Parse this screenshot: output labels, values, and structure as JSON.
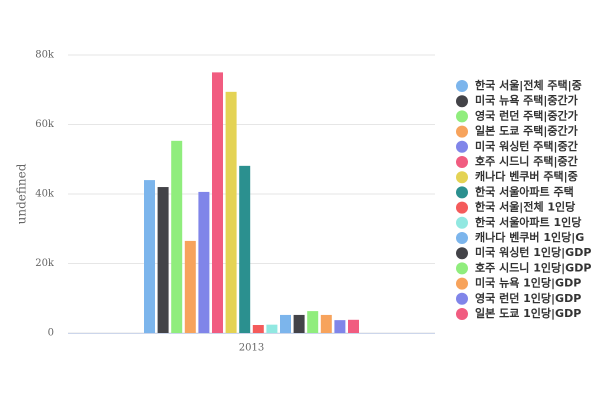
{
  "chart_data": {
    "type": "bar",
    "y_label": "undefined",
    "categories": [
      "2013"
    ],
    "ylim": [
      0,
      80000
    ],
    "yticks": [
      0,
      {
        "value": 20000,
        "label": "20k"
      },
      {
        "value": 40000,
        "label": "40k"
      },
      {
        "value": 60000,
        "label": "60k"
      },
      {
        "value": 80000,
        "label": "80k"
      }
    ],
    "grid": true,
    "legend": "right",
    "series": [
      {
        "name": "한국 서울|전체 주택|중",
        "color": "#7cb5ec",
        "values": [
          44000
        ]
      },
      {
        "name": "미국 뉴욕 주택|중간가",
        "color": "#434348",
        "values": [
          42000
        ]
      },
      {
        "name": "영국 런던 주택|중간가",
        "color": "#90ed7d",
        "values": [
          55300
        ]
      },
      {
        "name": "일본 도쿄 주택|중간가",
        "color": "#f7a35c",
        "values": [
          26500
        ]
      },
      {
        "name": "미국 워싱턴 주택|중간",
        "color": "#8085e9",
        "values": [
          40600
        ]
      },
      {
        "name": "호주 시드니 주택|중간",
        "color": "#f15c80",
        "values": [
          75000
        ]
      },
      {
        "name": "캐나다 벤쿠버 주택|중",
        "color": "#e4d354",
        "values": [
          69400
        ]
      },
      {
        "name": "한국 서울아파트 주택",
        "color": "#2b908f",
        "values": [
          48100
        ]
      },
      {
        "name": "한국 서울|전체 1인당",
        "color": "#f45b5b",
        "values": [
          2300
        ]
      },
      {
        "name": "한국 서울아파트 1인당",
        "color": "#91e8e1",
        "values": [
          2400
        ]
      },
      {
        "name": "캐나다 벤쿠버 1인당|G",
        "color": "#7cb5ec",
        "values": [
          5200
        ]
      },
      {
        "name": "미국 워싱턴 1인당|GDP",
        "color": "#434348",
        "values": [
          5200
        ]
      },
      {
        "name": "호주 시드니 1인당|GDP",
        "color": "#90ed7d",
        "values": [
          6300
        ]
      },
      {
        "name": "미국 뉴욕 1인당|GDP",
        "color": "#f7a35c",
        "values": [
          5200
        ]
      },
      {
        "name": "영국 런던 1인당|GDP",
        "color": "#8085e9",
        "values": [
          3700
        ]
      },
      {
        "name": "일본 도쿄 1인당|GDP",
        "color": "#f15c80",
        "values": [
          3800
        ]
      }
    ]
  }
}
